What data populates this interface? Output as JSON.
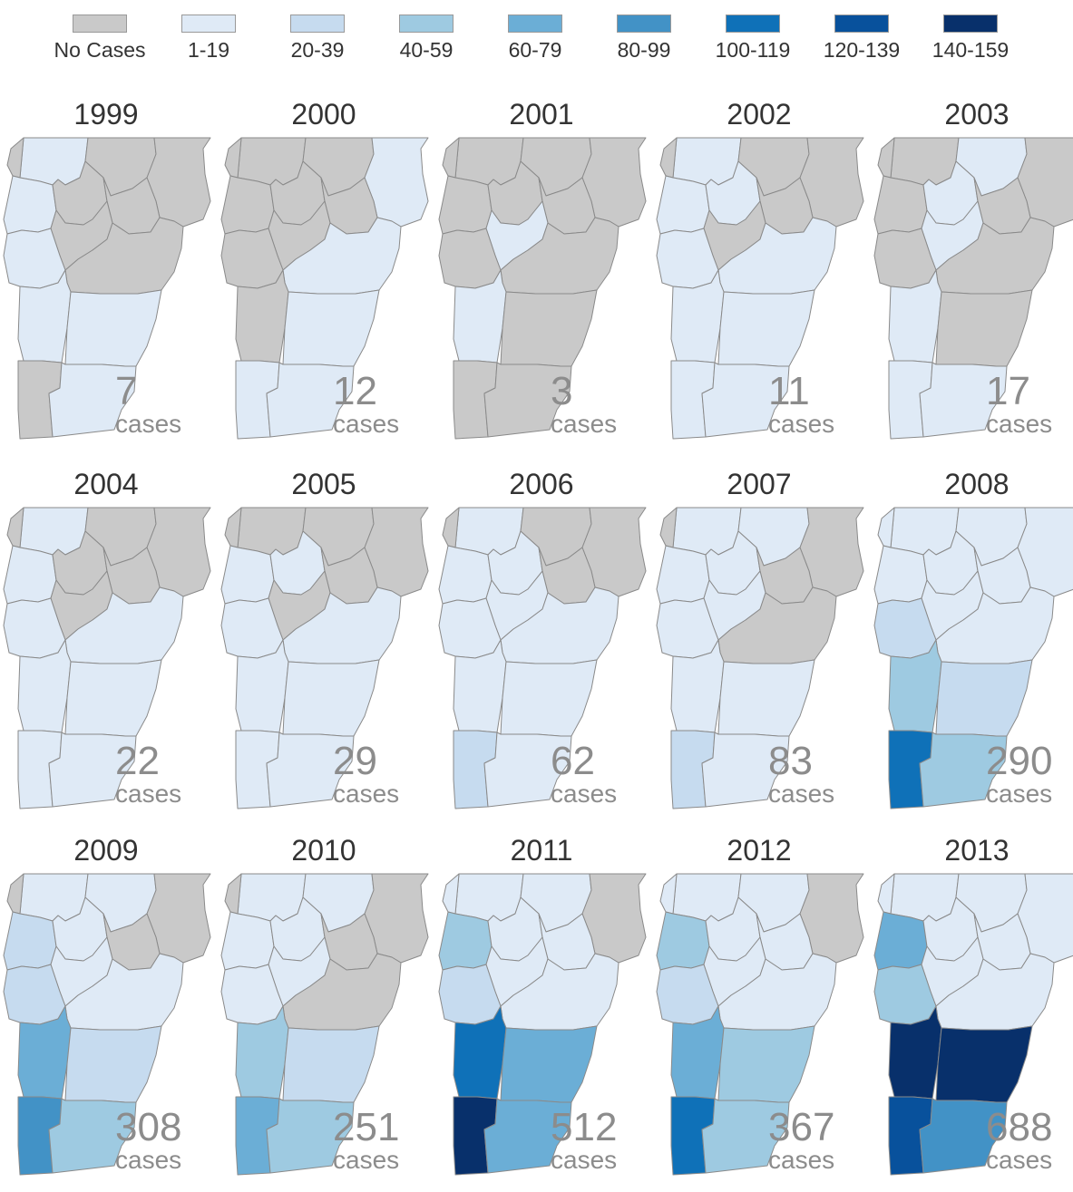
{
  "legend": {
    "items": [
      {
        "label": "No Cases",
        "color": "#c9c9c9"
      },
      {
        "label": "1-19",
        "color": "#dfeaf6"
      },
      {
        "label": "20-39",
        "color": "#c6dbef"
      },
      {
        "label": "40-59",
        "color": "#9ecae1"
      },
      {
        "label": "60-79",
        "color": "#6baed6"
      },
      {
        "label": "80-99",
        "color": "#4292c6"
      },
      {
        "label": "100-119",
        "color": "#0f71b8"
      },
      {
        "label": "120-139",
        "color": "#08519c"
      },
      {
        "label": "140-159",
        "color": "#08306b"
      }
    ]
  },
  "cases_unit": "cases",
  "county_order": [
    "franklin",
    "orleans",
    "essex",
    "grand-isle",
    "chittenden",
    "lamoille",
    "caledonia",
    "washington",
    "addison",
    "orange",
    "rutland",
    "windsor",
    "bennington",
    "windham"
  ],
  "panels": [
    {
      "year": "1999",
      "cases": "7",
      "levels": [
        1,
        0,
        0,
        0,
        1,
        0,
        0,
        0,
        1,
        0,
        1,
        1,
        0,
        1
      ]
    },
    {
      "year": "2000",
      "cases": "12",
      "levels": [
        0,
        0,
        1,
        0,
        0,
        0,
        0,
        0,
        0,
        1,
        0,
        1,
        1,
        1
      ]
    },
    {
      "year": "2001",
      "cases": "3",
      "levels": [
        0,
        0,
        0,
        0,
        0,
        0,
        0,
        1,
        0,
        0,
        1,
        0,
        0,
        0
      ]
    },
    {
      "year": "2002",
      "cases": "11",
      "levels": [
        1,
        0,
        0,
        0,
        1,
        1,
        0,
        0,
        1,
        1,
        1,
        1,
        1,
        1
      ]
    },
    {
      "year": "2003",
      "cases": "17",
      "levels": [
        0,
        1,
        0,
        0,
        0,
        1,
        0,
        1,
        0,
        0,
        1,
        0,
        1,
        1
      ]
    },
    {
      "year": "2004",
      "cases": "22",
      "levels": [
        1,
        0,
        0,
        0,
        1,
        0,
        0,
        0,
        1,
        1,
        1,
        1,
        1,
        1
      ]
    },
    {
      "year": "2005",
      "cases": "29",
      "levels": [
        0,
        0,
        0,
        0,
        1,
        1,
        0,
        0,
        1,
        1,
        1,
        1,
        1,
        1
      ]
    },
    {
      "year": "2006",
      "cases": "62",
      "levels": [
        1,
        0,
        0,
        0,
        1,
        1,
        0,
        1,
        1,
        1,
        1,
        1,
        2,
        1
      ]
    },
    {
      "year": "2007",
      "cases": "83",
      "levels": [
        1,
        1,
        0,
        0,
        1,
        1,
        0,
        1,
        1,
        0,
        1,
        1,
        2,
        1
      ]
    },
    {
      "year": "2008",
      "cases": "290",
      "levels": [
        1,
        1,
        1,
        1,
        1,
        1,
        1,
        1,
        2,
        1,
        3,
        2,
        6,
        3
      ]
    },
    {
      "year": "2009",
      "cases": "308",
      "levels": [
        1,
        1,
        0,
        0,
        2,
        1,
        0,
        1,
        2,
        1,
        4,
        2,
        5,
        3
      ]
    },
    {
      "year": "2010",
      "cases": "251",
      "levels": [
        1,
        1,
        0,
        0,
        1,
        1,
        0,
        1,
        1,
        0,
        3,
        2,
        4,
        3
      ]
    },
    {
      "year": "2011",
      "cases": "512",
      "levels": [
        1,
        1,
        0,
        1,
        3,
        1,
        1,
        1,
        2,
        1,
        6,
        4,
        8,
        4
      ]
    },
    {
      "year": "2012",
      "cases": "367",
      "levels": [
        1,
        1,
        0,
        1,
        3,
        1,
        1,
        1,
        2,
        1,
        4,
        3,
        6,
        3
      ]
    },
    {
      "year": "2013",
      "cases": "688",
      "levels": [
        1,
        1,
        1,
        1,
        4,
        1,
        1,
        1,
        3,
        1,
        8,
        8,
        7,
        5
      ]
    }
  ]
}
